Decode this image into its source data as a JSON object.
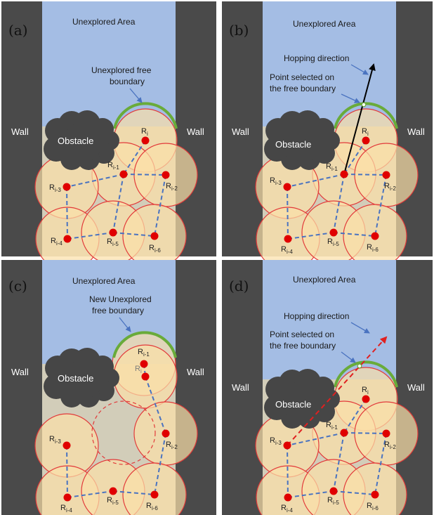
{
  "labels": {
    "wall": "Wall",
    "unexplored_area": "Unexplored Area",
    "obstacle": "Obstacle",
    "robot_prefix": "R",
    "unexplored_free_boundary_1": "Unexplored free",
    "unexplored_free_boundary_2": "boundary",
    "new_unexplored_1": "New Unexplored",
    "new_unexplored_2": "free boundary",
    "hopping_direction": "Hopping direction",
    "point_selected_1": "Point selected on",
    "point_selected_2": "the free boundary"
  },
  "panels": [
    {
      "id": "a",
      "label": "(a)"
    },
    {
      "id": "b",
      "label": "(b)"
    },
    {
      "id": "c",
      "label": "(c)"
    },
    {
      "id": "d",
      "label": "(d)"
    }
  ],
  "robots": {
    "i": "i",
    "i1": "i-1",
    "i2": "i-2",
    "i3": "i-3",
    "i4": "i-4",
    "i5": "i-5",
    "i6": "i-6"
  },
  "colors": {
    "wall": "#4a4a4a",
    "sky": "#a4bde4",
    "floor": "#d2cdb9",
    "circle_fill": "#fbe0a8",
    "circle_stroke": "#e23a3a",
    "robot": "#e00000",
    "boundary": "#69ab3a",
    "link": "#4a73c0",
    "obstacle": "#464646",
    "arrow_solid": "#000000",
    "arrow_dashed": "#e02020"
  }
}
